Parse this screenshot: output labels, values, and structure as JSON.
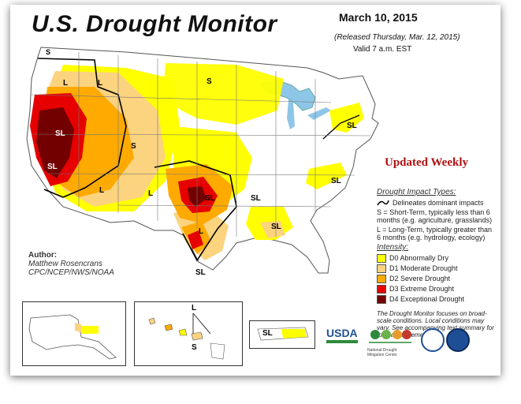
{
  "header": {
    "title": "U.S. Drought Monitor",
    "date": "March 10, 2015",
    "released": "(Released Thursday, Mar. 12, 2015)",
    "valid": "Valid 7 a.m. EST"
  },
  "banner": {
    "updated": "Updated Weekly"
  },
  "legend": {
    "impact_header": "Drought Impact Types:",
    "delineates": "Delineates dominant impacts",
    "short_term": "S = Short-Term, typically less than 6 months (e.g. agriculture, grasslands)",
    "long_term": "L = Long-Term, typically greater than 6 months (e.g. hydrology, ecology)",
    "intensity_header": "Intensity:",
    "levels": [
      {
        "label": "D0 Abnormally Dry",
        "color": "#ffff00"
      },
      {
        "label": "D1 Moderate Drought",
        "color": "#fcd37f"
      },
      {
        "label": "D2 Severe Drought",
        "color": "#ffaa00"
      },
      {
        "label": "D3 Extreme Drought",
        "color": "#e60000"
      },
      {
        "label": "D4 Exceptional Drought",
        "color": "#730000"
      }
    ],
    "note": "The Drought Monitor focuses on broad-scale conditions. Local conditions may vary. See accompanying text summary for forecast statements."
  },
  "author": {
    "label": "Author:",
    "name": "Matthew Rosencrans",
    "org": "CPC/NCEP/NWS/NOAA"
  },
  "map_labels": {
    "s": "S",
    "l": "L",
    "sl": "SL"
  },
  "colors": {
    "land": "#ffffff",
    "water": "#8ec6e8",
    "border": "#555555",
    "impact_line": "#000000"
  },
  "logos": {
    "usda": "USDA",
    "ndmc": "National Drought Mitigation Center"
  }
}
